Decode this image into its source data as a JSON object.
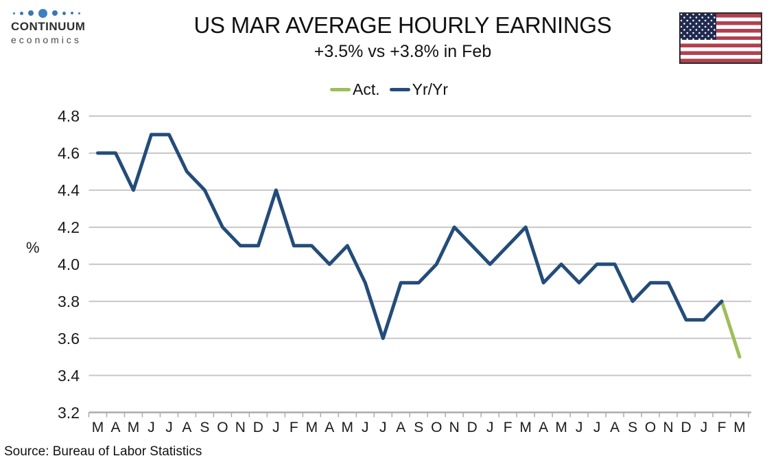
{
  "logo": {
    "name": "CONTINUUM",
    "tagline": "economics",
    "dots_icon": "continuum-dots-icon",
    "brand_blue": "#3c78b0"
  },
  "header": {
    "title": "US MAR AVERAGE HOURLY EARNINGS",
    "subtitle": "+3.5% vs +3.8% in Feb"
  },
  "flag_icon": "us-flag-icon",
  "legend": [
    {
      "label": "Act.",
      "color": "#9fbe5a"
    },
    {
      "label": "Yr/Yr",
      "color": "#234c79"
    }
  ],
  "colors": {
    "line_green": "#9fbe5a",
    "line_blue": "#234c79",
    "gridline": "#c7c7c7",
    "axis": "#ababab",
    "flag_red": "#b2414f",
    "flag_navy": "#20294f"
  },
  "chart_data": {
    "type": "line",
    "title": "US MAR AVERAGE HOURLY EARNINGS",
    "subtitle": "+3.5% vs +3.8% in Feb",
    "xlabel": "",
    "ylabel": "%",
    "ylim": [
      3.2,
      4.8
    ],
    "y_ticks": [
      "4.8",
      "4.6",
      "4.4",
      "4.2",
      "4.0",
      "3.8",
      "3.6",
      "3.4",
      "3.2"
    ],
    "grid": true,
    "legend_position": "top-center",
    "categories": [
      "M",
      "A",
      "M",
      "J",
      "J",
      "A",
      "S",
      "O",
      "N",
      "D",
      "J",
      "F",
      "M",
      "A",
      "M",
      "J",
      "J",
      "A",
      "S",
      "O",
      "N",
      "D",
      "J",
      "F",
      "M",
      "A",
      "M",
      "J",
      "J",
      "A",
      "S",
      "O",
      "N",
      "D",
      "J",
      "F",
      "M"
    ],
    "series": [
      {
        "name": "Act.",
        "color": "#9fbe5a",
        "values": [
          null,
          null,
          null,
          null,
          null,
          null,
          null,
          null,
          null,
          null,
          null,
          null,
          null,
          null,
          null,
          null,
          null,
          null,
          null,
          null,
          null,
          null,
          null,
          null,
          null,
          null,
          null,
          null,
          null,
          null,
          null,
          null,
          null,
          null,
          null,
          3.8,
          3.5
        ]
      },
      {
        "name": "Yr/Yr",
        "color": "#234c79",
        "values": [
          4.6,
          4.6,
          4.4,
          4.7,
          4.7,
          4.5,
          4.4,
          4.2,
          4.1,
          4.1,
          4.4,
          4.1,
          4.1,
          4.0,
          4.1,
          3.9,
          3.6,
          3.9,
          3.9,
          4.0,
          4.2,
          4.1,
          4.0,
          4.1,
          4.2,
          3.9,
          4.0,
          3.9,
          4.0,
          4.0,
          3.8,
          3.9,
          3.9,
          3.7,
          3.7,
          3.8,
          null
        ]
      }
    ]
  },
  "source": "Source: Bureau of Labor Statistics"
}
